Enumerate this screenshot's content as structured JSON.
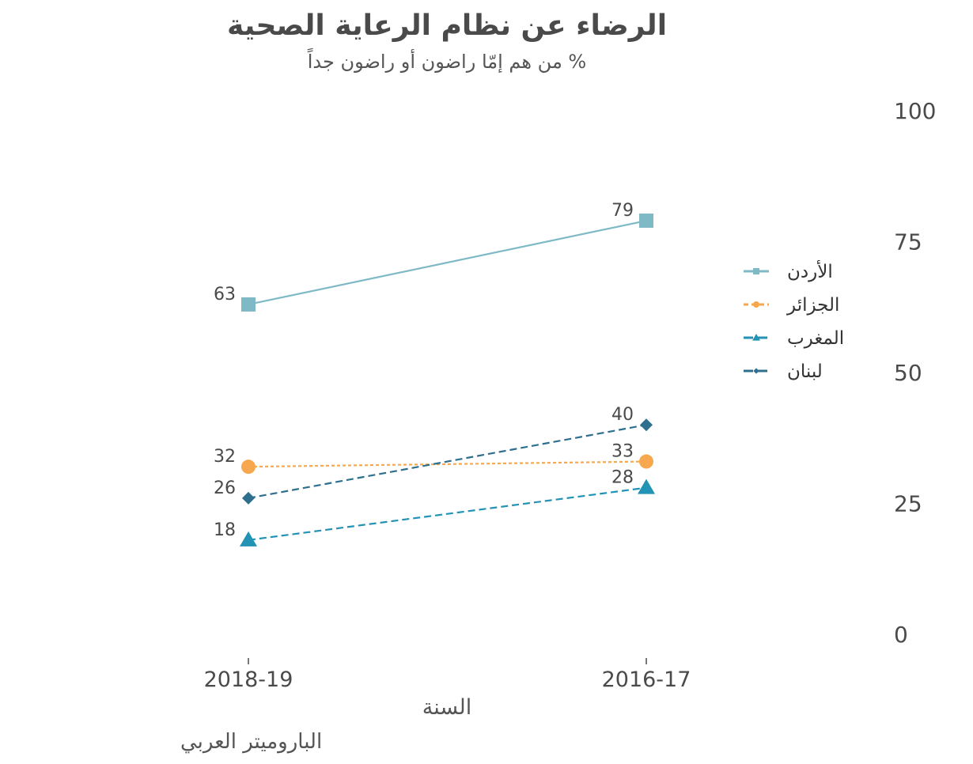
{
  "chart_data": {
    "type": "line",
    "title": "الرضاء عن نظام الرعاية الصحية",
    "subtitle": "% من هم  إمّا راضون  أو راضون جداً",
    "xlabel": "السنة",
    "ylabel": "",
    "categories": [
      "2018-19",
      "2016-17"
    ],
    "yticks": [
      0,
      25,
      50,
      75,
      100
    ],
    "ylim": [
      0,
      100
    ],
    "y_axis_side": "right",
    "grid": false,
    "legend_position": "right",
    "series": [
      {
        "name": "الأردن",
        "values": [
          63,
          79
        ],
        "color": "#7fb9c6",
        "marker": "square",
        "dash": "solid"
      },
      {
        "name": "الجزائر",
        "values": [
          32,
          33
        ],
        "color": "#f7a84e",
        "marker": "circle",
        "dash": "dotted"
      },
      {
        "name": "المغرب",
        "values": [
          18,
          28
        ],
        "color": "#2292b5",
        "marker": "triangle",
        "dash": "dashed"
      },
      {
        "name": "لبنان",
        "values": [
          26,
          40
        ],
        "color": "#2e6f8e",
        "marker": "diamond",
        "dash": "dashed"
      }
    ]
  },
  "caption": "الباروميتر العربي"
}
